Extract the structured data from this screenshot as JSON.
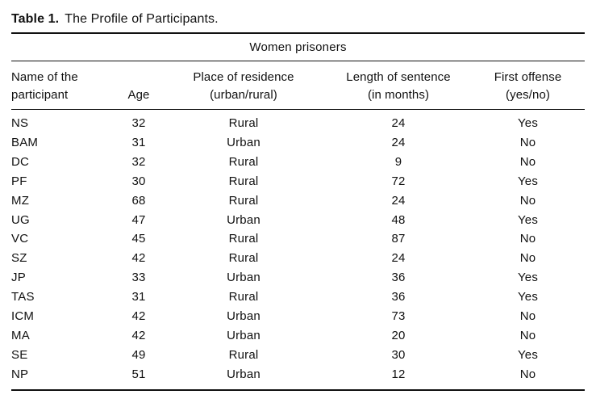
{
  "page": {
    "background": "#ffffff",
    "text_color": "#111111",
    "rule_color": "#111111"
  },
  "title": {
    "label": "Table 1.",
    "text": "The Profile of Participants."
  },
  "table": {
    "spanner": "Women prisoners",
    "columns": [
      {
        "line1": "Name of the",
        "line2": "participant"
      },
      {
        "line1": "",
        "line2": "Age"
      },
      {
        "line1": "Place of residence",
        "line2": "(urban/rural)"
      },
      {
        "line1": "Length of sentence",
        "line2": "(in months)"
      },
      {
        "line1": "First offense",
        "line2": "(yes/no)"
      }
    ],
    "row_keys": [
      "name",
      "age",
      "residence",
      "sentence",
      "first_offense"
    ],
    "rows": [
      {
        "name": "NS",
        "age": "32",
        "residence": "Rural",
        "sentence": "24",
        "first_offense": "Yes"
      },
      {
        "name": "BAM",
        "age": "31",
        "residence": "Urban",
        "sentence": "24",
        "first_offense": "No"
      },
      {
        "name": "DC",
        "age": "32",
        "residence": "Rural",
        "sentence": "9",
        "first_offense": "No"
      },
      {
        "name": "PF",
        "age": "30",
        "residence": "Rural",
        "sentence": "72",
        "first_offense": "Yes"
      },
      {
        "name": "MZ",
        "age": "68",
        "residence": "Rural",
        "sentence": "24",
        "first_offense": "No"
      },
      {
        "name": "UG",
        "age": "47",
        "residence": "Urban",
        "sentence": "48",
        "first_offense": "Yes"
      },
      {
        "name": "VC",
        "age": "45",
        "residence": "Rural",
        "sentence": "87",
        "first_offense": "No"
      },
      {
        "name": "SZ",
        "age": "42",
        "residence": "Rural",
        "sentence": "24",
        "first_offense": "No"
      },
      {
        "name": "JP",
        "age": "33",
        "residence": "Urban",
        "sentence": "36",
        "first_offense": "Yes"
      },
      {
        "name": "TAS",
        "age": "31",
        "residence": "Rural",
        "sentence": "36",
        "first_offense": "Yes"
      },
      {
        "name": "ICM",
        "age": "42",
        "residence": "Urban",
        "sentence": "73",
        "first_offense": "No"
      },
      {
        "name": "MA",
        "age": "42",
        "residence": "Urban",
        "sentence": "20",
        "first_offense": "No"
      },
      {
        "name": "SE",
        "age": "49",
        "residence": "Rural",
        "sentence": "30",
        "first_offense": "Yes"
      },
      {
        "name": "NP",
        "age": "51",
        "residence": "Urban",
        "sentence": "12",
        "first_offense": "No"
      }
    ]
  },
  "chart_data": {
    "type": "table",
    "title": "Table 1. The Profile of Participants.",
    "spanner": "Women prisoners",
    "columns": [
      "Name of the participant",
      "Age",
      "Place of residence (urban/rural)",
      "Length of sentence (in months)",
      "First offense (yes/no)"
    ],
    "rows": [
      [
        "NS",
        32,
        "Rural",
        24,
        "Yes"
      ],
      [
        "BAM",
        31,
        "Urban",
        24,
        "No"
      ],
      [
        "DC",
        32,
        "Rural",
        9,
        "No"
      ],
      [
        "PF",
        30,
        "Rural",
        72,
        "Yes"
      ],
      [
        "MZ",
        68,
        "Rural",
        24,
        "No"
      ],
      [
        "UG",
        47,
        "Urban",
        48,
        "Yes"
      ],
      [
        "VC",
        45,
        "Rural",
        87,
        "No"
      ],
      [
        "SZ",
        42,
        "Rural",
        24,
        "No"
      ],
      [
        "JP",
        33,
        "Urban",
        36,
        "Yes"
      ],
      [
        "TAS",
        31,
        "Rural",
        36,
        "Yes"
      ],
      [
        "ICM",
        42,
        "Urban",
        73,
        "No"
      ],
      [
        "MA",
        42,
        "Urban",
        20,
        "No"
      ],
      [
        "SE",
        49,
        "Rural",
        30,
        "Yes"
      ],
      [
        "NP",
        51,
        "Urban",
        12,
        "No"
      ]
    ]
  }
}
